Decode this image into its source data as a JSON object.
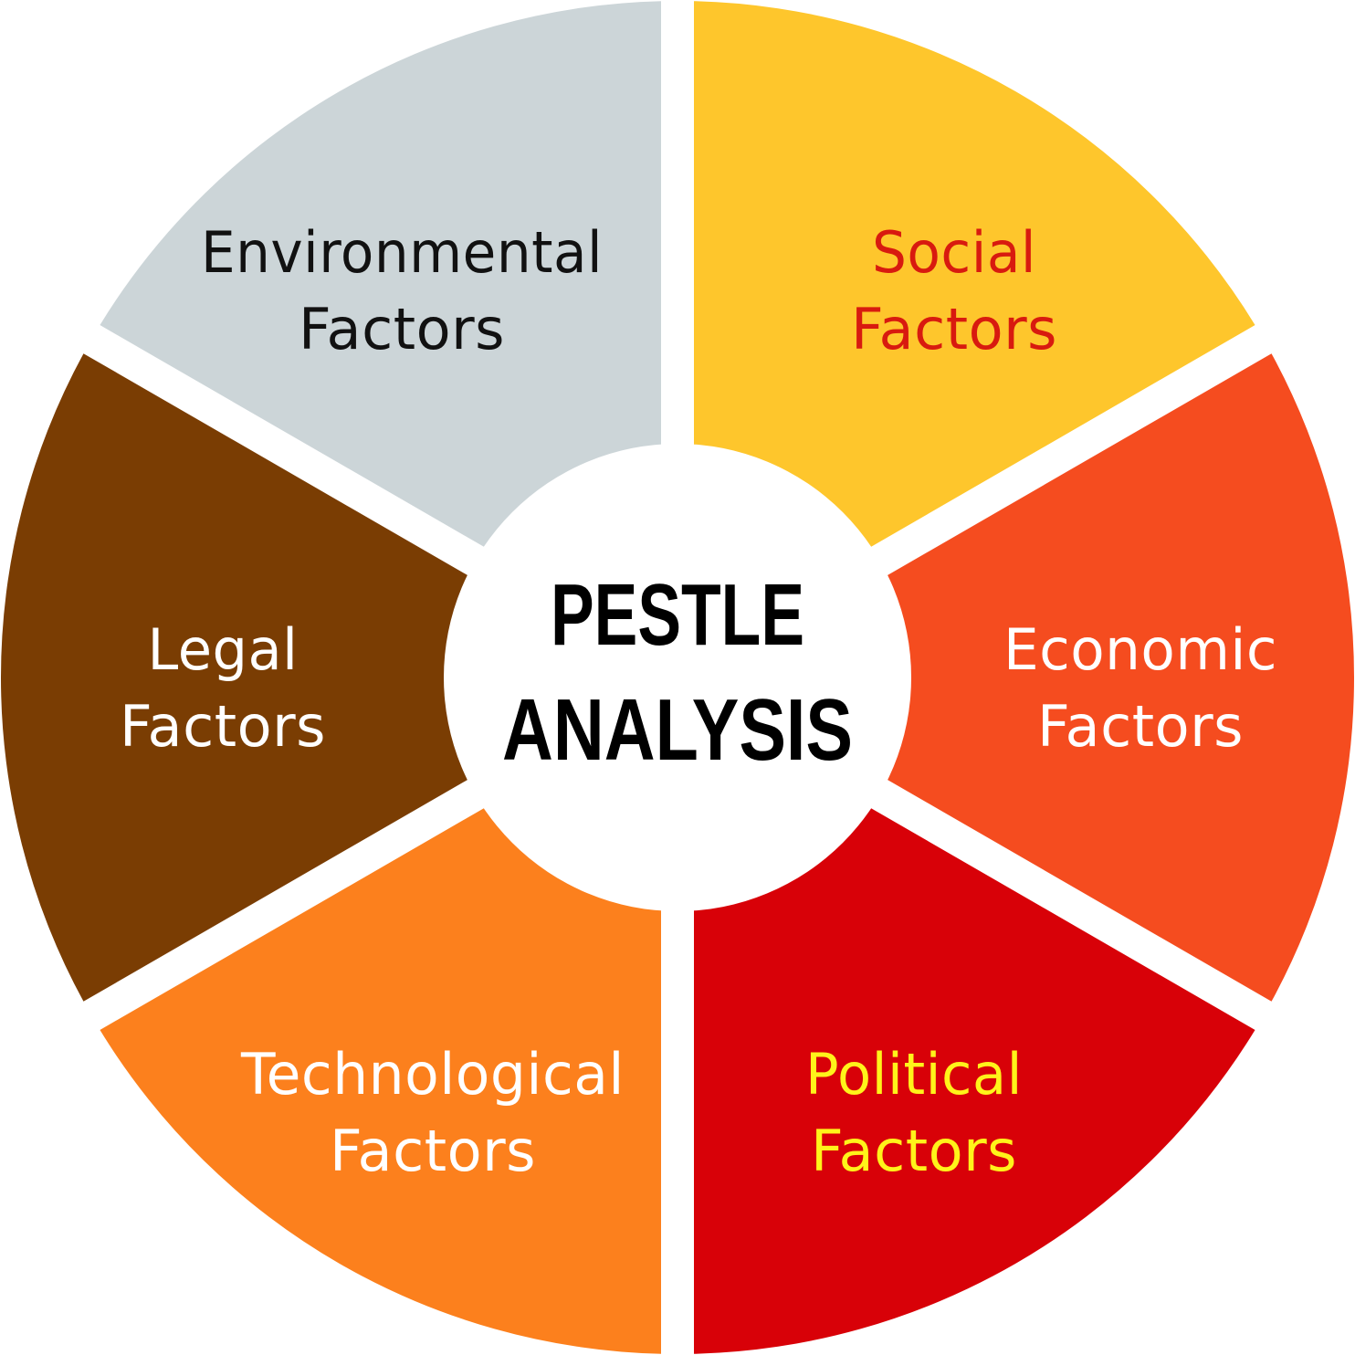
{
  "center": {
    "line1": "PESTLE",
    "line2": "ANALYSIS"
  },
  "segments": [
    {
      "id": "environmental",
      "line1": "Environmental",
      "line2": "Factors",
      "fill": "#CCD5D8",
      "text_color": "#111111"
    },
    {
      "id": "social",
      "line1": "Social",
      "line2": "Factors",
      "fill": "#FEC62C",
      "text_color": "#D81A0F"
    },
    {
      "id": "economic",
      "line1": "Economic",
      "line2": "Factors",
      "fill": "#F54C1F",
      "text_color": "#FFFFFF"
    },
    {
      "id": "political",
      "line1": "Political",
      "line2": "Factors",
      "fill": "#D80108",
      "text_color": "#FFF31A"
    },
    {
      "id": "technological",
      "line1": "Technological",
      "line2": "Factors",
      "fill": "#FC801D",
      "text_color": "#FFFFFF"
    },
    {
      "id": "legal",
      "line1": "Legal",
      "line2": "Factors",
      "fill": "#7A3D03",
      "text_color": "#FFFFFF"
    }
  ]
}
